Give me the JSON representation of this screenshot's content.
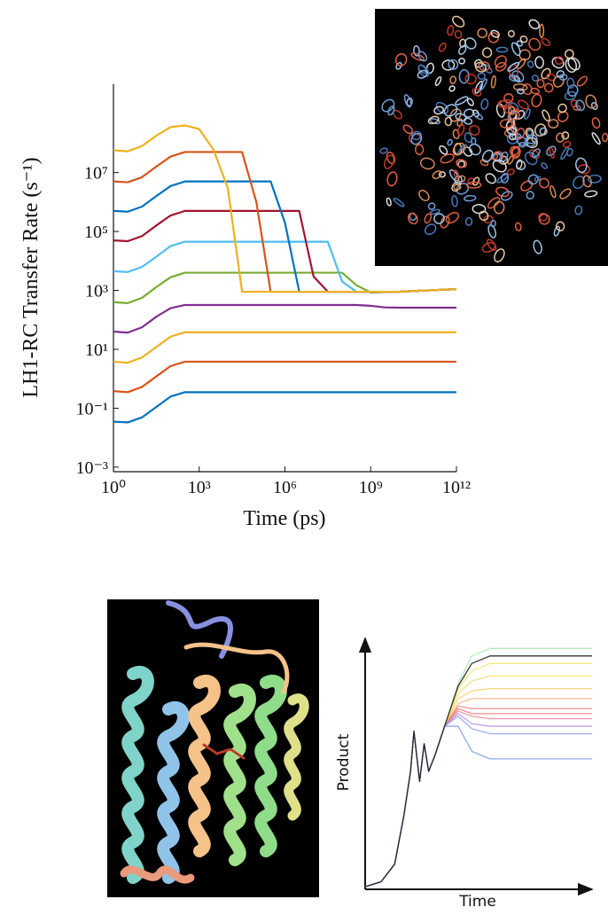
{
  "chart_data": [
    {
      "type": "line",
      "xlabel": "Time (ps)",
      "ylabel": "LH1-RC Transfer Rate (s⁻¹)",
      "xscale": "log",
      "yscale": "log",
      "xlim": [
        1,
        1000000000000.0
      ],
      "ylim": [
        0.0007,
        10000000000.0
      ],
      "xticks": [
        {
          "value": 1,
          "label": "10⁰"
        },
        {
          "value": 1000,
          "label": "10³"
        },
        {
          "value": 1000000.0,
          "label": "10⁶"
        },
        {
          "value": 1000000000.0,
          "label": "10⁹"
        },
        {
          "value": 1000000000000.0,
          "label": "10¹²"
        }
      ],
      "yticks": [
        {
          "value": 0.001,
          "label": "10⁻³"
        },
        {
          "value": 0.1,
          "label": "10⁻¹"
        },
        {
          "value": 10,
          "label": "10¹"
        },
        {
          "value": 1000,
          "label": "10³"
        },
        {
          "value": 100000,
          "label": "10⁵"
        },
        {
          "value": 10000000,
          "label": "10⁷"
        }
      ],
      "x": [
        1,
        3.162,
        10,
        31.62,
        100,
        316.2,
        1000,
        3162,
        10000.0,
        31620.0,
        100000.0,
        316200.0,
        1000000.0,
        3162000.0,
        10000000.0,
        31620000.0,
        100000000.0,
        316200000.0,
        1000000000.0,
        3162000000.0,
        10000000000.0,
        31620000000.0,
        100000000000.0,
        316200000000.0,
        1000000000000.0
      ],
      "series": [
        {
          "color": "#0072BD",
          "values": [
            0.035,
            0.033,
            0.049,
            0.11,
            0.25,
            0.35,
            0.35,
            0.35,
            0.35,
            0.35,
            0.35,
            0.35,
            0.35,
            0.35,
            0.35,
            0.35,
            0.35,
            0.35,
            0.35,
            0.35,
            0.35,
            0.35,
            0.35,
            0.35,
            0.35
          ]
        },
        {
          "color": "#D95319",
          "values": [
            0.38,
            0.35,
            0.53,
            1.2,
            2.7,
            3.8,
            3.8,
            3.8,
            3.8,
            3.8,
            3.8,
            3.8,
            3.8,
            3.8,
            3.8,
            3.8,
            3.8,
            3.8,
            3.8,
            3.8,
            3.8,
            3.8,
            3.8,
            3.8,
            3.8
          ]
        },
        {
          "color": "#EDB120",
          "values": [
            3.8,
            3.5,
            5.3,
            12,
            27,
            38,
            38,
            38,
            38,
            38,
            38,
            38,
            38,
            38,
            38,
            38,
            38,
            38,
            38,
            38,
            38,
            38,
            38,
            38,
            38
          ]
        },
        {
          "color": "#7E2F8E",
          "values": [
            40,
            37,
            56,
            128,
            250,
            320,
            320,
            320,
            320,
            320,
            320,
            320,
            320,
            320,
            320,
            320,
            320,
            320,
            300,
            265,
            260,
            260,
            260,
            260,
            260
          ]
        },
        {
          "color": "#77AC30",
          "values": [
            400,
            370,
            560,
            1300,
            2800,
            4000,
            4000,
            4000,
            4000,
            4000,
            4000,
            4000,
            4000,
            4000,
            4000,
            4000,
            4000,
            1500,
            850,
            880,
            900,
            950,
            1000,
            1050,
            1100
          ]
        },
        {
          "color": "#4DBEEE",
          "values": [
            4500,
            4200,
            6300,
            14000,
            32000,
            45000,
            45000,
            45000,
            45000,
            45000,
            45000,
            45000,
            45000,
            45000,
            45000,
            45000,
            2000,
            900,
            900,
            900,
            900,
            950,
            1000,
            1050,
            1100
          ]
        },
        {
          "color": "#A2142F",
          "values": [
            50000.0,
            47000.0,
            70000.0,
            160000.0,
            350000.0,
            500000.0,
            500000.0,
            500000.0,
            500000.0,
            500000.0,
            500000.0,
            500000.0,
            500000.0,
            500000.0,
            3000,
            900,
            900,
            900,
            900,
            900,
            900,
            950,
            1000,
            1050,
            1100
          ]
        },
        {
          "color": "#0072BD",
          "values": [
            500000.0,
            470000.0,
            700000.0,
            1600000.0,
            3500000.0,
            5000000.0,
            5000000.0,
            5000000.0,
            5000000.0,
            5000000.0,
            5000000.0,
            5000000.0,
            200000.0,
            900,
            900,
            900,
            900,
            900,
            900,
            900,
            900,
            950,
            1000,
            1050,
            1100
          ]
        },
        {
          "color": "#D95319",
          "values": [
            5000000.0,
            4700000.0,
            7000000.0,
            16000000.0,
            35000000.0,
            50000000.0,
            50000000.0,
            50000000.0,
            50000000.0,
            50000000.0,
            1000000.0,
            900,
            900,
            900,
            900,
            900,
            900,
            900,
            900,
            900,
            900,
            950,
            1000,
            1050,
            1100
          ]
        },
        {
          "color": "#EDB120",
          "values": [
            57000000.0,
            53000000.0,
            80000000.0,
            180000000.0,
            350000000.0,
            400000000.0,
            300000000.0,
            60000000.0,
            3000000.0,
            900,
            900,
            900,
            900,
            900,
            900,
            900,
            900,
            900,
            900,
            900,
            900,
            950,
            1000,
            1050,
            1100
          ]
        }
      ]
    },
    {
      "type": "line",
      "xlabel": "Time",
      "ylabel": "Product",
      "xlim": [
        0,
        10
      ],
      "ylim": [
        0,
        10
      ],
      "x": [
        0,
        0.7,
        1.3,
        1.7,
        2,
        2.15,
        2.4,
        2.6,
        2.8,
        3.1,
        3.5,
        4.1,
        4.7,
        5.5,
        7.5,
        10
      ],
      "series": [
        {
          "color": "#a8e6b0",
          "values": [
            0.1,
            0.3,
            1,
            2.9,
            4.7,
            6.3,
            4.3,
            5.8,
            4.7,
            5.4,
            6.5,
            8.2,
            9.3,
            9.6,
            9.6,
            9.6
          ]
        },
        {
          "color": "#f2e56a",
          "values": [
            0.1,
            0.3,
            1,
            2.9,
            4.7,
            6.3,
            4.3,
            5.8,
            4.7,
            5.4,
            6.5,
            8,
            8.7,
            9,
            9,
            9
          ]
        },
        {
          "color": "#f7dc6f",
          "values": [
            0.1,
            0.3,
            1,
            2.9,
            4.7,
            6.3,
            4.3,
            5.8,
            4.7,
            5.4,
            6.5,
            7.8,
            8.3,
            8.5,
            8.5,
            8.5
          ]
        },
        {
          "color": "#f8cf6a",
          "values": [
            0.1,
            0.3,
            1,
            2.9,
            4.7,
            6.3,
            4.3,
            5.8,
            4.7,
            5.4,
            6.5,
            7.6,
            7.9,
            8,
            8,
            8
          ]
        },
        {
          "color": "#f5b88a",
          "values": [
            0.1,
            0.3,
            1,
            2.9,
            4.7,
            6.3,
            4.3,
            5.8,
            4.7,
            5.4,
            6.5,
            7.4,
            7.6,
            7.6,
            7.6,
            7.6
          ]
        },
        {
          "color": "#f08080",
          "values": [
            0.1,
            0.3,
            1,
            2.9,
            4.7,
            6.3,
            4.3,
            5.8,
            4.7,
            5.4,
            6.5,
            7.3,
            7.2,
            7.2,
            7.2,
            7.2
          ]
        },
        {
          "color": "#ee7a7a",
          "values": [
            0.1,
            0.3,
            1,
            2.9,
            4.7,
            6.3,
            4.3,
            5.8,
            4.7,
            5.4,
            6.5,
            7.2,
            7,
            7,
            7,
            7
          ]
        },
        {
          "color": "#e88a9a",
          "values": [
            0.1,
            0.3,
            1,
            2.9,
            4.7,
            6.3,
            4.3,
            5.8,
            4.7,
            5.4,
            6.5,
            7.1,
            6.9,
            6.8,
            6.8,
            6.8
          ]
        },
        {
          "color": "#b58ee0",
          "values": [
            0.1,
            0.3,
            1,
            2.9,
            4.7,
            6.3,
            4.3,
            5.8,
            4.7,
            5.4,
            6.5,
            7,
            6.6,
            6.5,
            6.5,
            6.5
          ]
        },
        {
          "color": "#8fa0f0",
          "values": [
            0.1,
            0.3,
            1,
            2.9,
            4.7,
            6.3,
            4.3,
            5.8,
            4.7,
            5.4,
            6.5,
            6.9,
            6.4,
            6.2,
            6.2,
            6.2
          ]
        },
        {
          "color": "#7f9ae8",
          "values": [
            0.1,
            0.3,
            1,
            2.9,
            4.7,
            6.3,
            4.3,
            5.8,
            4.7,
            5.4,
            6.5,
            6.5,
            5.5,
            5.2,
            5.2,
            5.2
          ]
        },
        {
          "color": "#111111",
          "values": [
            0.1,
            0.3,
            1,
            2.9,
            4.7,
            6.3,
            4.3,
            5.8,
            4.7,
            5.4,
            6.5,
            8.1,
            9,
            9.3,
            9.3,
            9.3
          ]
        }
      ]
    }
  ]
}
